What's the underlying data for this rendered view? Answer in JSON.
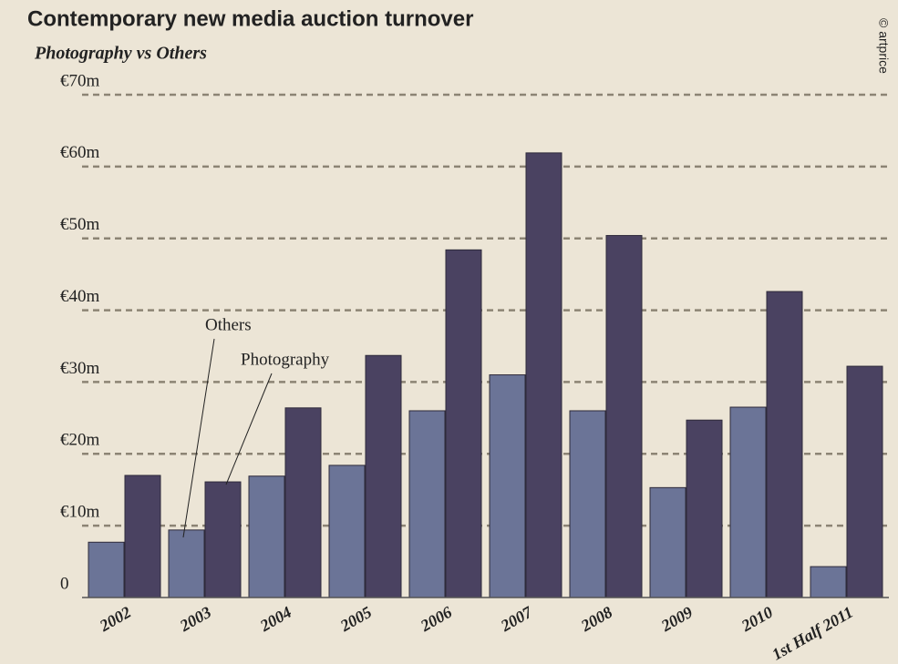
{
  "chart_data": {
    "type": "bar",
    "title": "Contemporary new media auction turnover",
    "subtitle": "Photography vs Others",
    "credit": "© artprice",
    "categories": [
      "2002",
      "2003",
      "2004",
      "2005",
      "2006",
      "2007",
      "2008",
      "2009",
      "2010",
      "1st Half 2011"
    ],
    "series": [
      {
        "name": "Others",
        "color": "#6b7497",
        "values": [
          7.7,
          9.4,
          16.9,
          18.4,
          26,
          31,
          26,
          15.3,
          26.5,
          4.3
        ]
      },
      {
        "name": "Photography",
        "color": "#4a4261",
        "values": [
          17,
          16.1,
          26.4,
          33.7,
          48.4,
          61.9,
          50.4,
          24.7,
          42.6,
          32.2
        ]
      }
    ],
    "ylim": [
      0,
      70
    ],
    "yticks": [
      0,
      {
        "value": 10,
        "label": "€10m"
      },
      {
        "value": 20,
        "label": "€20m"
      },
      {
        "value": 30,
        "label": "€30m"
      },
      {
        "value": 40,
        "label": "€40m"
      },
      {
        "value": 50,
        "label": "€50m"
      },
      {
        "value": 60,
        "label": "€60m"
      },
      {
        "value": 70,
        "label": "€70m"
      }
    ],
    "grid": true
  }
}
